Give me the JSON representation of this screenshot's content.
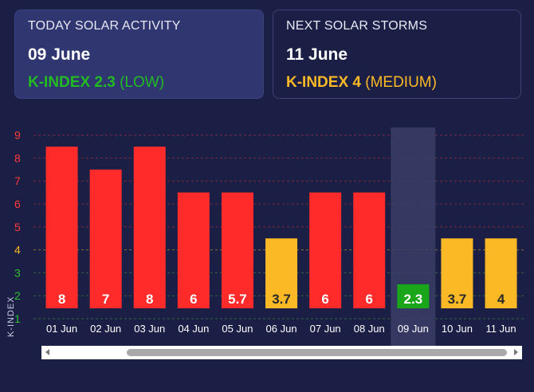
{
  "today": {
    "label": "TODAY SOLAR ACTIVITY",
    "date": "09 June",
    "k_label": "K-INDEX 2.3",
    "k_level": "(LOW)"
  },
  "next": {
    "label": "NEXT SOLAR STORMS",
    "date": "11 June",
    "k_label": "K-INDEX 4",
    "k_level": "(MEDIUM)"
  },
  "colors": {
    "background": "#1b1f45",
    "high": "#ff2a2a",
    "medium": "#fbb926",
    "low": "#1aa51a",
    "highlight": "#3a3e66"
  },
  "chart_data": {
    "type": "bar",
    "categories": [
      "01 Jun",
      "02 Jun",
      "03 Jun",
      "04 Jun",
      "05 Jun",
      "06 Jun",
      "07 Jun",
      "08 Jun",
      "09 Jun",
      "10 Jun",
      "11 Jun"
    ],
    "values": [
      8,
      7,
      8,
      6,
      5.7,
      3.7,
      6,
      6,
      2.3,
      3.7,
      4
    ],
    "bar_levels": [
      8.5,
      7.5,
      8.5,
      6.5,
      6.5,
      4.5,
      6.5,
      6.5,
      2.5,
      4.5,
      4.5
    ],
    "value_labels": [
      "8",
      "7",
      "8",
      "6",
      "5.7",
      "3.7",
      "6",
      "6",
      "2.3",
      "3.7",
      "4"
    ],
    "level": [
      "high",
      "high",
      "high",
      "high",
      "high",
      "medium",
      "high",
      "high",
      "low",
      "medium",
      "medium"
    ],
    "highlight_category": "09 Jun",
    "y_ticks": [
      "1",
      "2",
      "3",
      "4",
      "5",
      "6",
      "7",
      "8",
      "9"
    ],
    "y_tick_levels": [
      "low",
      "low",
      "low",
      "medium",
      "high",
      "high",
      "high",
      "high",
      "high"
    ],
    "ylabel": "K-INDEX",
    "ylim": [
      1,
      9
    ],
    "grid": true
  }
}
